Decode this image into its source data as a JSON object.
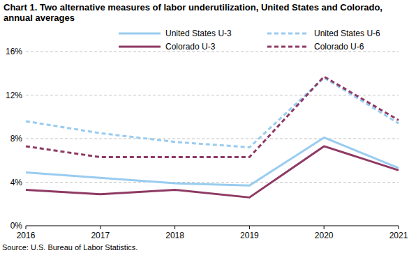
{
  "chart_data": {
    "type": "line",
    "title": "Chart 1. Two alternative measures of labor underutilization, United States and Colorado, annual averages",
    "source": "Source: U.S. Bureau of Labor Statistics.",
    "categories": [
      "2016",
      "2017",
      "2018",
      "2019",
      "2020",
      "2021"
    ],
    "series": [
      {
        "name": "United States U-3",
        "color": "#99ccf0",
        "line_style": "solid",
        "values": [
          4.9,
          4.4,
          3.9,
          3.7,
          8.1,
          5.3
        ]
      },
      {
        "name": "United States U-6",
        "color": "#99ccf0",
        "line_style": "dashed",
        "values": [
          9.6,
          8.5,
          7.7,
          7.2,
          13.6,
          9.4
        ]
      },
      {
        "name": "Colorado U-3",
        "color": "#8e3a64",
        "line_style": "solid",
        "values": [
          3.3,
          2.9,
          3.3,
          2.6,
          7.3,
          5.1
        ]
      },
      {
        "name": "Colorado U-6",
        "color": "#8e3a64",
        "line_style": "dashed",
        "values": [
          7.3,
          6.3,
          6.3,
          6.3,
          13.7,
          9.7
        ]
      }
    ],
    "ylim": [
      0,
      16
    ],
    "yticks": [
      {
        "value": 0,
        "label": "0%"
      },
      {
        "value": 4,
        "label": "4%"
      },
      {
        "value": 8,
        "label": "8%"
      },
      {
        "value": 12,
        "label": "12%"
      },
      {
        "value": 16,
        "label": "16%"
      }
    ],
    "grid": true,
    "legend": "top"
  }
}
